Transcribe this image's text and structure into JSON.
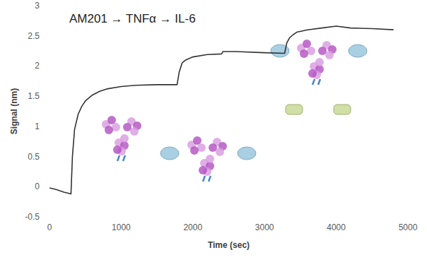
{
  "chart_data": {
    "type": "line",
    "annotation": "AM201 → TNFα → IL-6",
    "x_label": "Time (sec)",
    "y_label": "Signal (nm)",
    "color": "#333333",
    "x": [
      0,
      100,
      200,
      300,
      320,
      350,
      400,
      450,
      500,
      600,
      700,
      800,
      1000,
      1200,
      1500,
      1780,
      1810,
      1850,
      1900,
      2000,
      2200,
      2400,
      2420,
      2600,
      3000,
      3280,
      3310,
      3350,
      3400,
      3450,
      3600,
      3800,
      4000,
      4200,
      4500,
      4800
    ],
    "values": [
      -0.02,
      -0.05,
      -0.09,
      -0.12,
      0.5,
      0.95,
      1.2,
      1.33,
      1.42,
      1.52,
      1.58,
      1.62,
      1.66,
      1.68,
      1.69,
      1.69,
      1.9,
      2.05,
      2.1,
      2.15,
      2.19,
      2.2,
      2.24,
      2.24,
      2.22,
      2.21,
      2.38,
      2.47,
      2.52,
      2.56,
      2.6,
      2.63,
      2.66,
      2.63,
      2.62,
      2.6
    ],
    "xlim": [
      0,
      5000
    ],
    "xticks": [
      0,
      1000,
      2000,
      3000,
      4000,
      5000
    ],
    "ylim": [
      -0.5,
      3
    ],
    "yticks": [
      {
        "value": -0.5,
        "label": "-0.5"
      },
      0,
      {
        "value": 0.5,
        "label": "0.5"
      },
      1,
      {
        "value": 1.5,
        "label": "1.5"
      },
      2,
      {
        "value": 2.5,
        "label": "2.5"
      },
      3
    ],
    "grid": false
  }
}
